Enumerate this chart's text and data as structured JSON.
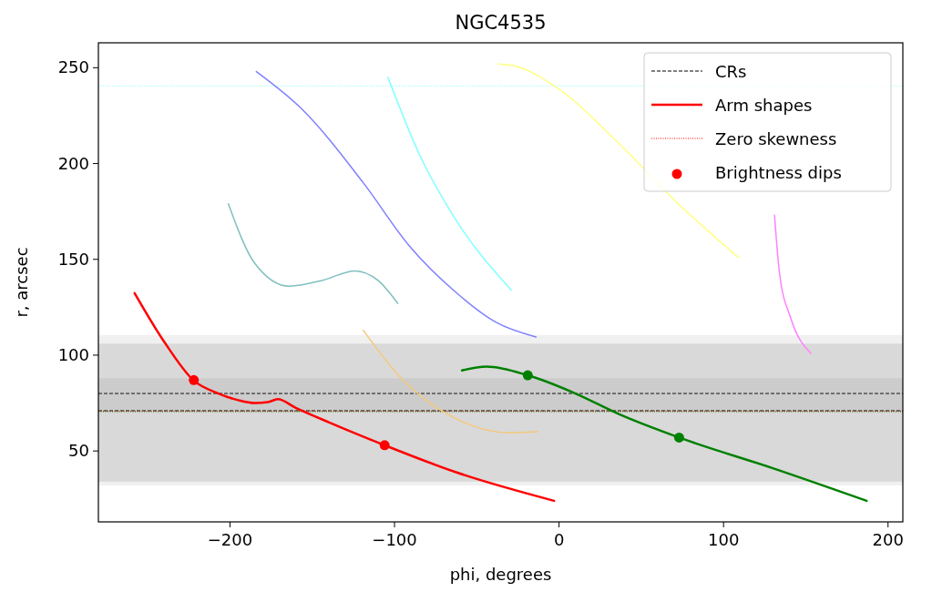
{
  "chart_data": {
    "type": "line",
    "title": "NGC4535",
    "xlabel": "phi, degrees",
    "ylabel": "r, arcsec",
    "xlim": [
      -280,
      209
    ],
    "ylim": [
      13,
      263
    ],
    "xticks": [
      -200,
      -100,
      0,
      100,
      200
    ],
    "yticks": [
      50,
      100,
      150,
      200,
      250
    ],
    "grid": false,
    "legend": "top right",
    "series": [
      {
        "name": "Arm shapes",
        "color": "#ff0000",
        "x": [
          -258,
          -240,
          -222,
          -207,
          -195,
          -185,
          -177,
          -171,
          -160,
          -140,
          -106,
          -63,
          -3
        ],
        "values": [
          132.4,
          107,
          86.7,
          80,
          76.5,
          75,
          75.5,
          77,
          72.5,
          65,
          53,
          39,
          24
        ]
      },
      {
        "type": "line",
        "color": "#008000",
        "x": [
          -59,
          -44,
          -19,
          10,
          37,
          73,
          130,
          187
        ],
        "values": [
          92,
          94,
          89.5,
          80,
          69,
          57,
          41,
          24
        ]
      },
      {
        "type": "line",
        "color": "#80bfbf",
        "x": [
          -201,
          -185,
          -164,
          -144,
          -124,
          -110,
          -98
        ],
        "values": [
          179,
          148,
          136,
          139,
          144,
          139,
          127
        ]
      },
      {
        "type": "line",
        "color": "#8080ff",
        "x": [
          -184,
          -157,
          -119,
          -91,
          -63,
          -38,
          -14
        ],
        "values": [
          248,
          229,
          190,
          157,
          133,
          117,
          109.5
        ]
      },
      {
        "type": "line",
        "color": "#80ffff",
        "x": [
          -104,
          -85,
          -63,
          -29
        ],
        "values": [
          245,
          205,
          171,
          134
        ]
      },
      {
        "type": "line",
        "color": "#ffff80",
        "x": [
          -37,
          -27,
          -2,
          37,
          70,
          109
        ],
        "values": [
          252,
          251,
          240,
          210,
          181,
          151
        ]
      },
      {
        "type": "line",
        "color": "#ff80ff",
        "x": [
          131,
          134,
          141,
          153
        ],
        "values": [
          173,
          143,
          119,
          101
        ]
      },
      {
        "type": "line",
        "color": "#f5c87a",
        "x": [
          -119,
          -96,
          -63,
          -30,
          -13
        ],
        "values": [
          113,
          88,
          67,
          59.5,
          60
        ]
      },
      {
        "name": "Brightness dips",
        "type": "scatter",
        "color": "#ff0000",
        "marker": "circle",
        "x": [
          -222,
          -106
        ],
        "values": [
          87,
          53
        ]
      },
      {
        "type": "scatter",
        "color": "#008000",
        "marker": "circle",
        "x": [
          -19,
          73
        ],
        "values": [
          89.5,
          57
        ]
      }
    ],
    "bands": [
      {
        "axis": "y",
        "from": 32,
        "to": 110.5,
        "color": "#f0f0f0"
      },
      {
        "axis": "y",
        "from": 34,
        "to": 106,
        "color": "#d9d9d9"
      },
      {
        "axis": "y",
        "from": 71,
        "to": 88,
        "color": "#cccccc"
      }
    ],
    "ref_lines": [
      {
        "axis": "y",
        "value": 80,
        "label": "CRs",
        "color": "#000000",
        "line_style": "dashed"
      },
      {
        "axis": "y",
        "value": 71,
        "color": "#000000",
        "line_style": "dashed"
      },
      {
        "axis": "y",
        "value": 70.8,
        "label": "Zero skewness",
        "color": "#ff0000",
        "line_style": "dotted"
      },
      {
        "axis": "y",
        "value": 70.5,
        "color": "#008000",
        "line_style": "dotted"
      },
      {
        "axis": "y",
        "value": 240.5,
        "color": "#80ffff",
        "line_style": "dotted"
      }
    ]
  }
}
